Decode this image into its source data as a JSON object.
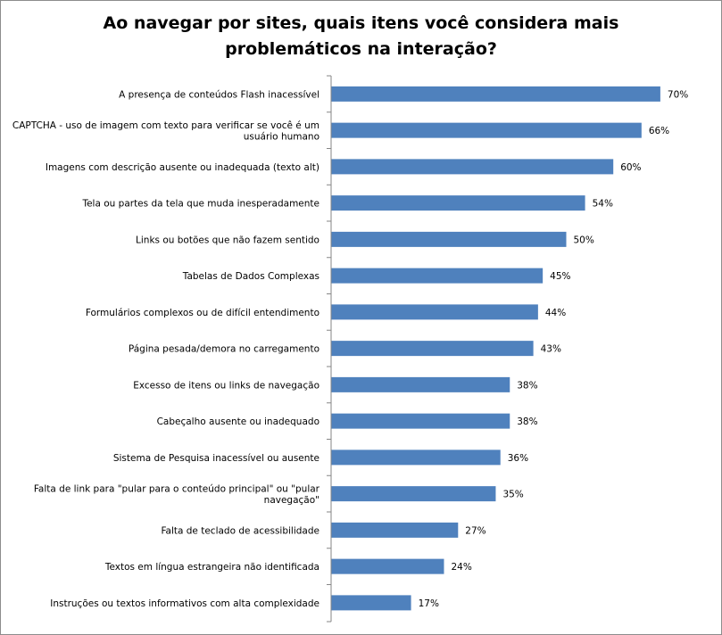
{
  "chart_data": {
    "type": "bar",
    "orientation": "horizontal",
    "title_lines": [
      "Ao navegar por sites, quais itens você considera mais",
      "problemáticos na interação?"
    ],
    "categories": [
      [
        "A presença de conteúdos Flash inacessível"
      ],
      [
        "CAPTCHA - uso de imagem com texto para verificar se você é um",
        "usuário humano"
      ],
      [
        "Imagens com descrição ausente ou inadequada (texto alt)"
      ],
      [
        "Tela ou partes da tela que muda inesperadamente"
      ],
      [
        "Links ou botões que não fazem sentido"
      ],
      [
        "Tabelas de Dados Complexas"
      ],
      [
        "Formulários complexos ou de difícil entendimento"
      ],
      [
        "Página pesada/demora no carregamento"
      ],
      [
        "Excesso de itens ou links de navegação"
      ],
      [
        "Cabeçalho ausente ou inadequado"
      ],
      [
        "Sistema de Pesquisa inacessível ou ausente"
      ],
      [
        "Falta de link para \"pular para o conteúdo principal\" ou \"pular",
        "navegação\""
      ],
      [
        "Falta de teclado de acessibilidade"
      ],
      [
        "Textos em língua estrangeira não identificada"
      ],
      [
        "Instruções ou textos informativos com alta complexidade"
      ]
    ],
    "values": [
      70,
      66,
      60,
      54,
      50,
      45,
      44,
      43,
      38,
      38,
      36,
      35,
      27,
      24,
      17
    ],
    "value_labels": [
      "70%",
      "66%",
      "60%",
      "54%",
      "50%",
      "45%",
      "44%",
      "43%",
      "38%",
      "38%",
      "36%",
      "35%",
      "27%",
      "24%",
      "17%"
    ],
    "xlim": [
      0,
      100
    ],
    "grid": false,
    "legend": "none",
    "bar_color": "#4f81bd",
    "axis_color": "#868686"
  }
}
